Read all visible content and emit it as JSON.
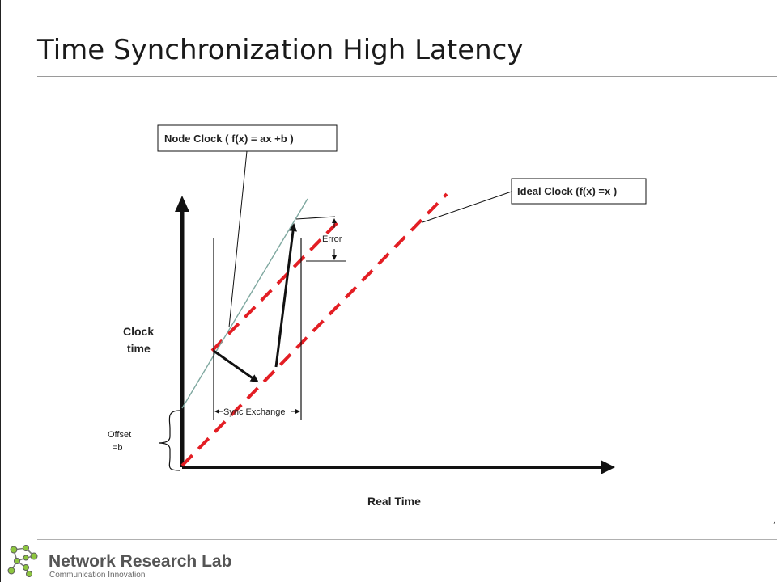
{
  "slide": {
    "title": "Time Synchronization High Latency"
  },
  "diagram": {
    "node_clock_label": "Node Clock ( f(x) = ax +b )",
    "ideal_clock_label": "Ideal Clock (f(x) =x )",
    "error_label": "Error",
    "y_axis_label_line1": "Clock",
    "y_axis_label_line2": "time",
    "x_axis_label": "Real Time",
    "sync_exchange_label": "Sync Exchange",
    "offset_label_line1": "Offset",
    "offset_label_line2": "=b",
    "colors": {
      "ideal_clock": "#e31e24",
      "node_clock": "#7fa8a0",
      "axis": "#111111"
    }
  },
  "footer": {
    "title": "Network Research Lab",
    "subtitle": "Communication Innovation",
    "corner_mark": ","
  }
}
